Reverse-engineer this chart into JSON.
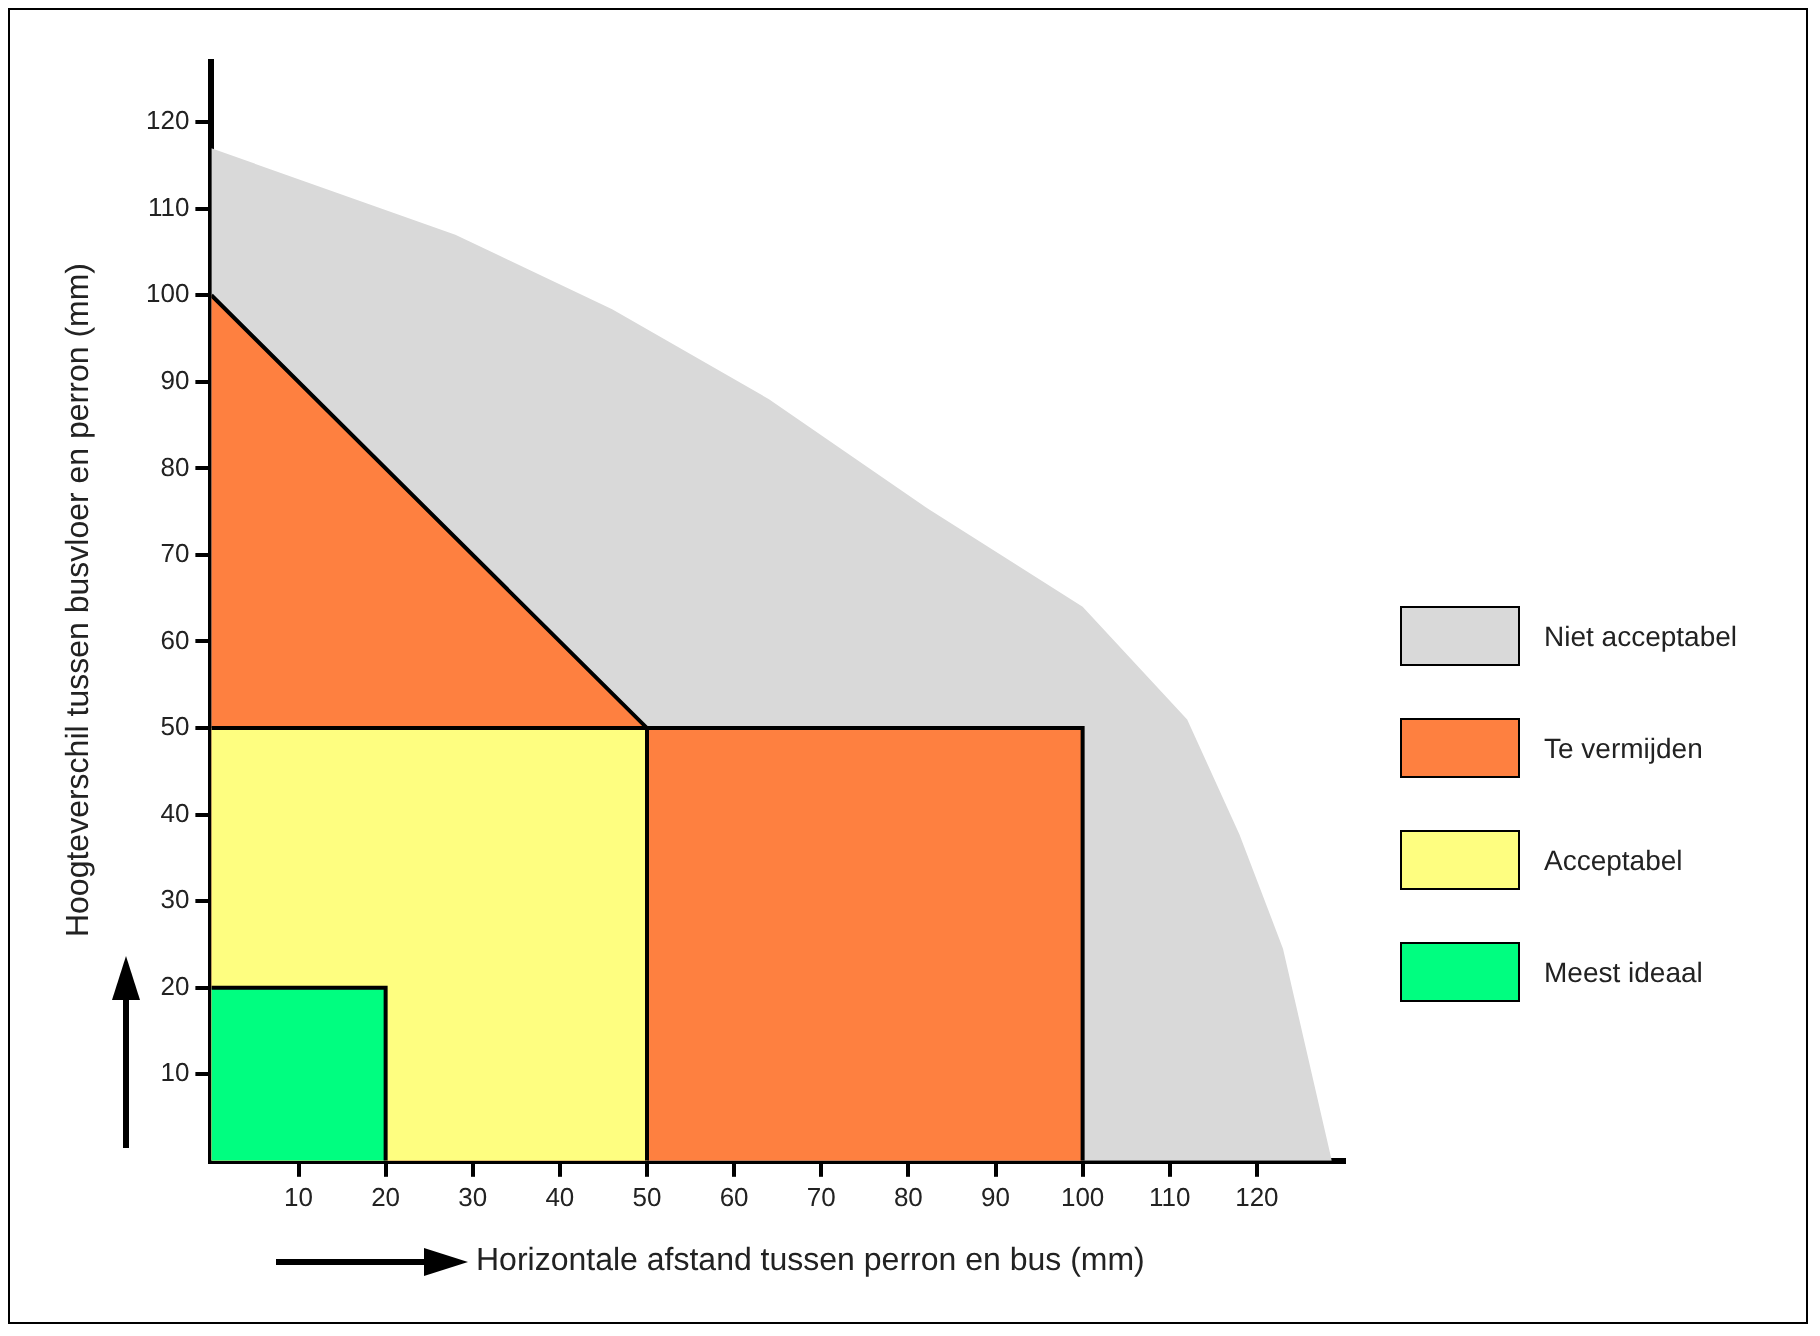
{
  "chart_data": {
    "type": "area",
    "xlabel": "Horizontale afstand tussen perron en bus (mm)",
    "ylabel": "Hoogteverschil tussen busvloer en perron (mm)",
    "xlim": [
      0,
      130
    ],
    "ylim": [
      0,
      127
    ],
    "xticks": [
      10,
      20,
      30,
      40,
      50,
      60,
      70,
      80,
      90,
      100,
      110,
      120
    ],
    "yticks": [
      10,
      20,
      30,
      40,
      50,
      60,
      70,
      80,
      90,
      100,
      110,
      120
    ],
    "grid": false,
    "legend": "right",
    "series": [
      {
        "name": "Niet acceptabel",
        "color": "#d9d9d9",
        "x": [
          0,
          10,
          28,
          46,
          64,
          82,
          100,
          112,
          118,
          123,
          128.6
        ],
        "values": [
          117,
          113.4,
          107,
          98.4,
          88,
          75.5,
          64,
          51,
          37.7,
          24.5,
          0
        ]
      },
      {
        "name": "Te vermijden",
        "color": "#fe8040",
        "x": [
          0,
          50,
          100,
          100
        ],
        "values": [
          100,
          50,
          50,
          0
        ]
      },
      {
        "name": "Acceptabel",
        "color": "#fefe80",
        "x": [
          0,
          50,
          50
        ],
        "values": [
          50,
          50,
          0
        ]
      },
      {
        "name": "Meest ideaal",
        "color": "#00fe80",
        "x": [
          0,
          20,
          20
        ],
        "values": [
          20,
          20,
          0
        ]
      }
    ]
  }
}
